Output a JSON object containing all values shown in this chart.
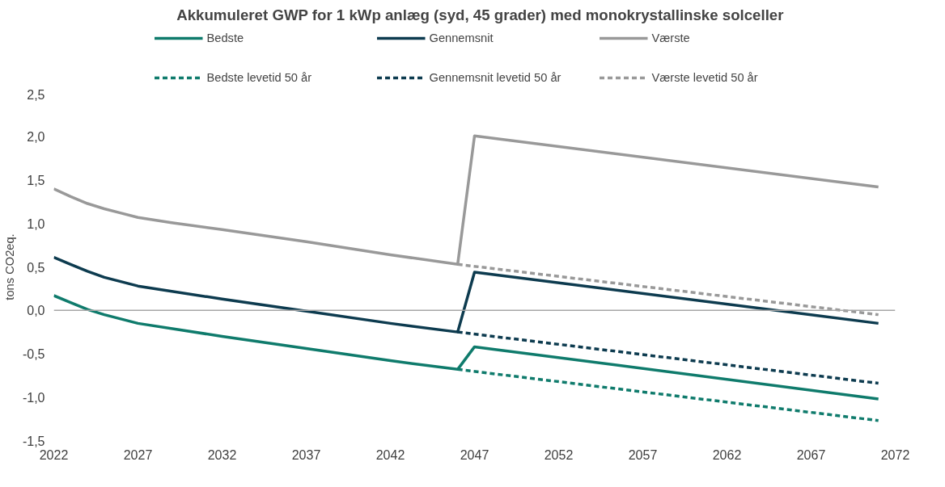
{
  "chart_data": {
    "type": "line",
    "title": "Akkumuleret GWP for 1 kWp anlæg (syd, 45 grader) med monokrystallinske solceller",
    "ylabel": "tons CO2eq.",
    "xlim": [
      2022,
      2072
    ],
    "xticks": [
      2022,
      2027,
      2032,
      2037,
      2042,
      2047,
      2052,
      2057,
      2062,
      2067,
      2072
    ],
    "ylim": [
      -1.5,
      2.5
    ],
    "yticks": [
      {
        "value": -1.5,
        "label": "-1,5"
      },
      {
        "value": -1.0,
        "label": "-1,0"
      },
      {
        "value": -0.5,
        "label": "-0,5"
      },
      {
        "value": 0,
        "label": "0,0"
      },
      {
        "value": 0.5,
        "label": "0,5"
      },
      {
        "value": 1.0,
        "label": "1,0"
      },
      {
        "value": 1.5,
        "label": "1,5"
      },
      {
        "value": 2.0,
        "label": "2,0"
      },
      {
        "value": 2.5,
        "label": "2,5"
      }
    ],
    "grid": false,
    "legend": "top",
    "marker": "none",
    "ref_lines": [
      {
        "axis": "y",
        "value": 0,
        "color": "#a6a6a6"
      }
    ],
    "series": [
      {
        "name": "Bedste",
        "color": "#0f7b6c",
        "line_style": "solid",
        "x": [
          2022,
          2023,
          2024,
          2025,
          2027,
          2032,
          2037,
          2042,
          2046,
          2047,
          2071
        ],
        "values": [
          0.17,
          0.09,
          0.01,
          -0.05,
          -0.15,
          -0.3,
          -0.44,
          -0.58,
          -0.68,
          -0.42,
          -1.02
        ]
      },
      {
        "name": "Gennemsnit",
        "color": "#0d3b4f",
        "line_style": "solid",
        "x": [
          2022,
          2023,
          2024,
          2025,
          2027,
          2032,
          2037,
          2042,
          2046,
          2047,
          2071
        ],
        "values": [
          0.61,
          0.53,
          0.45,
          0.38,
          0.28,
          0.13,
          -0.01,
          -0.15,
          -0.25,
          0.44,
          -0.15
        ]
      },
      {
        "name": "Værste",
        "color": "#999999",
        "line_style": "solid",
        "x": [
          2022,
          2023,
          2024,
          2025,
          2026,
          2027,
          2029,
          2032,
          2037,
          2042,
          2046,
          2047,
          2071
        ],
        "values": [
          1.4,
          1.31,
          1.23,
          1.17,
          1.12,
          1.07,
          1.01,
          0.93,
          0.79,
          0.64,
          0.53,
          2.01,
          1.42
        ]
      },
      {
        "name": "Bedste levetid 50 år",
        "color": "#0f7b6c",
        "line_style": "dashed",
        "x": [
          2046,
          2071
        ],
        "values": [
          -0.68,
          -1.27
        ]
      },
      {
        "name": "Gennemsnit levetid 50 år",
        "color": "#0d3b4f",
        "line_style": "dashed",
        "x": [
          2046,
          2071
        ],
        "values": [
          -0.25,
          -0.84
        ]
      },
      {
        "name": "Værste levetid 50 år",
        "color": "#999999",
        "line_style": "dashed",
        "x": [
          2046,
          2071
        ],
        "values": [
          0.53,
          -0.05
        ]
      }
    ]
  }
}
